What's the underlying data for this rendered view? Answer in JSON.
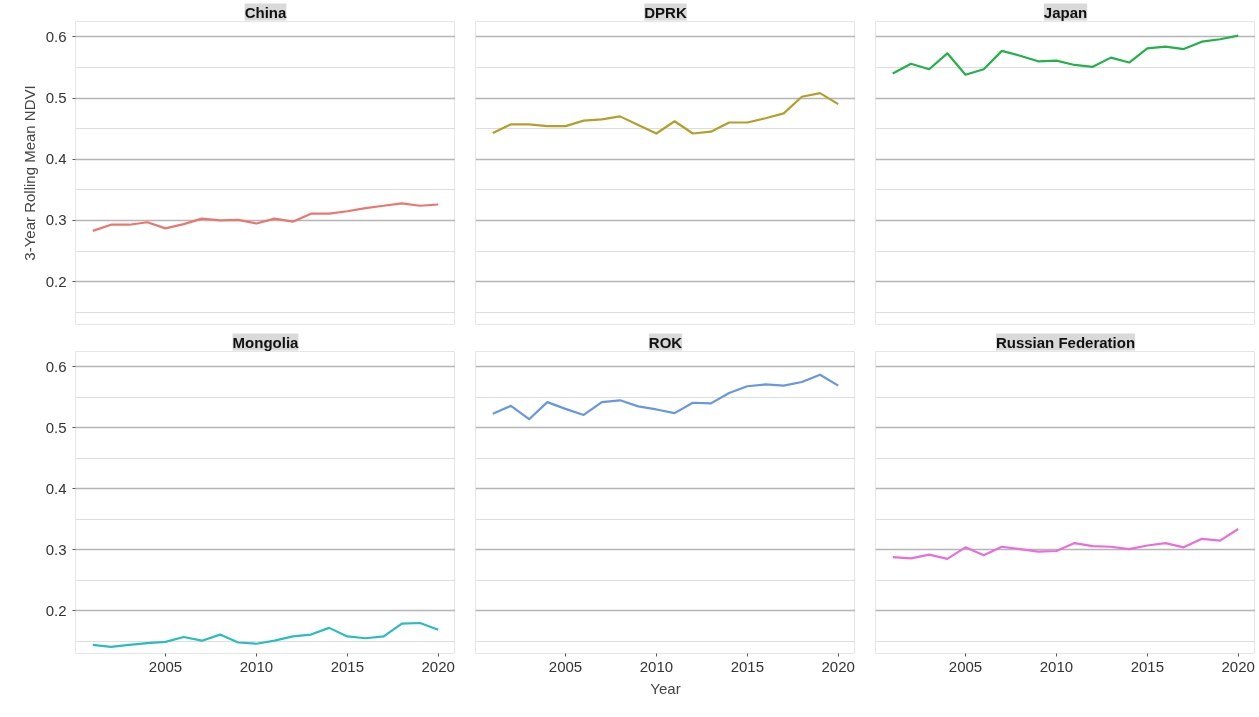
{
  "chart_data": [
    {
      "type": "line",
      "title": "China",
      "ylabel": "3-Year Rolling Mean NDVI",
      "tick_labels": "y",
      "grid": "y",
      "xlim": [
        2000.05,
        2020.95
      ],
      "ylim": [
        0.13,
        0.625
      ],
      "yticks": [
        {
          "value": 0.15,
          "label": null
        },
        0.2,
        {
          "value": 0.25,
          "label": null
        },
        0.3,
        {
          "value": 0.35,
          "label": null
        },
        0.4,
        {
          "value": 0.45,
          "label": null
        },
        0.5,
        {
          "value": 0.55,
          "label": null
        },
        0.6
      ],
      "x": [
        2001,
        2002,
        2003,
        2004,
        2005,
        2006,
        2007,
        2008,
        2009,
        2010,
        2011,
        2012,
        2013,
        2014,
        2015,
        2016,
        2017,
        2018,
        2019,
        2020
      ],
      "series": [
        {
          "color": "#e8776f",
          "values": [
            0.283,
            0.293,
            0.293,
            0.297,
            0.287,
            0.294,
            0.303,
            0.3,
            0.301,
            0.295,
            0.303,
            0.298,
            0.311,
            0.311,
            0.315,
            0.32,
            0.324,
            0.328,
            0.324,
            0.326
          ]
        }
      ]
    },
    {
      "type": "line",
      "title": "DPRK",
      "tick_labels": false,
      "grid": "y",
      "xlim": [
        2000.05,
        2020.95
      ],
      "ylim": [
        0.13,
        0.625
      ],
      "yticks": [
        {
          "value": 0.15,
          "label": null
        },
        0.2,
        {
          "value": 0.25,
          "label": null
        },
        0.3,
        {
          "value": 0.35,
          "label": null
        },
        0.4,
        {
          "value": 0.45,
          "label": null
        },
        0.5,
        {
          "value": 0.55,
          "label": null
        },
        0.6
      ],
      "x": [
        2001,
        2002,
        2003,
        2004,
        2005,
        2006,
        2007,
        2008,
        2009,
        2010,
        2011,
        2012,
        2013,
        2014,
        2015,
        2016,
        2017,
        2018,
        2019,
        2020
      ],
      "series": [
        {
          "color": "#b3a02a",
          "values": [
            0.443,
            0.457,
            0.457,
            0.454,
            0.454,
            0.463,
            0.465,
            0.47,
            0.456,
            0.442,
            0.462,
            0.442,
            0.445,
            0.46,
            0.46,
            0.467,
            0.475,
            0.502,
            0.508,
            0.49
          ]
        }
      ]
    },
    {
      "type": "line",
      "title": "Japan",
      "tick_labels": false,
      "grid": "y",
      "xlim": [
        2000.05,
        2020.95
      ],
      "ylim": [
        0.13,
        0.625
      ],
      "yticks": [
        {
          "value": 0.15,
          "label": null
        },
        0.2,
        {
          "value": 0.25,
          "label": null
        },
        0.3,
        {
          "value": 0.35,
          "label": null
        },
        0.4,
        {
          "value": 0.45,
          "label": null
        },
        0.5,
        {
          "value": 0.55,
          "label": null
        },
        0.6
      ],
      "x": [
        2001,
        2002,
        2003,
        2004,
        2005,
        2006,
        2007,
        2008,
        2009,
        2010,
        2011,
        2012,
        2013,
        2014,
        2015,
        2016,
        2017,
        2018,
        2019,
        2020
      ],
      "series": [
        {
          "color": "#22b14c",
          "values": [
            0.54,
            0.556,
            0.547,
            0.573,
            0.538,
            0.547,
            0.577,
            0.569,
            0.56,
            0.561,
            0.554,
            0.551,
            0.566,
            0.558,
            0.581,
            0.584,
            0.58,
            0.592,
            0.596,
            0.602
          ]
        }
      ]
    },
    {
      "type": "line",
      "title": "Mongolia",
      "grid": "y",
      "xlim": [
        2000.05,
        2020.95
      ],
      "ylim": [
        0.13,
        0.625
      ],
      "xticks": [
        2005,
        2010,
        2015,
        2020
      ],
      "yticks": [
        {
          "value": 0.15,
          "label": null
        },
        0.2,
        {
          "value": 0.25,
          "label": null
        },
        0.3,
        {
          "value": 0.35,
          "label": null
        },
        0.4,
        {
          "value": 0.45,
          "label": null
        },
        0.5,
        {
          "value": 0.55,
          "label": null
        },
        0.6
      ],
      "x": [
        2001,
        2002,
        2003,
        2004,
        2005,
        2006,
        2007,
        2008,
        2009,
        2010,
        2011,
        2012,
        2013,
        2014,
        2015,
        2016,
        2017,
        2018,
        2019,
        2020
      ],
      "series": [
        {
          "color": "#2bbcbf",
          "values": [
            0.144,
            0.141,
            0.144,
            0.147,
            0.149,
            0.157,
            0.151,
            0.161,
            0.148,
            0.146,
            0.151,
            0.158,
            0.161,
            0.172,
            0.158,
            0.155,
            0.158,
            0.179,
            0.18,
            0.169
          ]
        }
      ]
    },
    {
      "type": "line",
      "title": "ROK",
      "xlabel": "Year",
      "tick_labels": "x",
      "grid": "y",
      "xlim": [
        2000.05,
        2020.95
      ],
      "ylim": [
        0.13,
        0.625
      ],
      "xticks": [
        2005,
        2010,
        2015,
        2020
      ],
      "yticks": [
        {
          "value": 0.15,
          "label": null
        },
        0.2,
        {
          "value": 0.25,
          "label": null
        },
        0.3,
        {
          "value": 0.35,
          "label": null
        },
        0.4,
        {
          "value": 0.45,
          "label": null
        },
        0.5,
        {
          "value": 0.55,
          "label": null
        },
        0.6
      ],
      "x": [
        2001,
        2002,
        2003,
        2004,
        2005,
        2006,
        2007,
        2008,
        2009,
        2010,
        2011,
        2012,
        2013,
        2014,
        2015,
        2016,
        2017,
        2018,
        2019,
        2020
      ],
      "series": [
        {
          "color": "#6797e0",
          "values": [
            0.523,
            0.536,
            0.514,
            0.542,
            0.531,
            0.521,
            0.542,
            0.545,
            0.535,
            0.53,
            0.524,
            0.541,
            0.54,
            0.557,
            0.568,
            0.571,
            0.569,
            0.575,
            0.587,
            0.569
          ]
        }
      ]
    },
    {
      "type": "line",
      "title": "Russian Federation",
      "tick_labels": "x",
      "grid": "y",
      "xlim": [
        2000.05,
        2020.95
      ],
      "ylim": [
        0.13,
        0.625
      ],
      "xticks": [
        2005,
        2010,
        2015,
        2020
      ],
      "yticks": [
        {
          "value": 0.15,
          "label": null
        },
        0.2,
        {
          "value": 0.25,
          "label": null
        },
        0.3,
        {
          "value": 0.35,
          "label": null
        },
        0.4,
        {
          "value": 0.45,
          "label": null
        },
        0.5,
        {
          "value": 0.55,
          "label": null
        },
        0.6
      ],
      "x": [
        2001,
        2002,
        2003,
        2004,
        2005,
        2006,
        2007,
        2008,
        2009,
        2010,
        2011,
        2012,
        2013,
        2014,
        2015,
        2016,
        2017,
        2018,
        2019,
        2020
      ],
      "series": [
        {
          "color": "#e86fd8",
          "values": [
            0.288,
            0.286,
            0.292,
            0.285,
            0.304,
            0.291,
            0.305,
            0.301,
            0.297,
            0.298,
            0.311,
            0.306,
            0.305,
            0.301,
            0.307,
            0.311,
            0.304,
            0.318,
            0.315,
            0.334
          ]
        }
      ]
    }
  ]
}
